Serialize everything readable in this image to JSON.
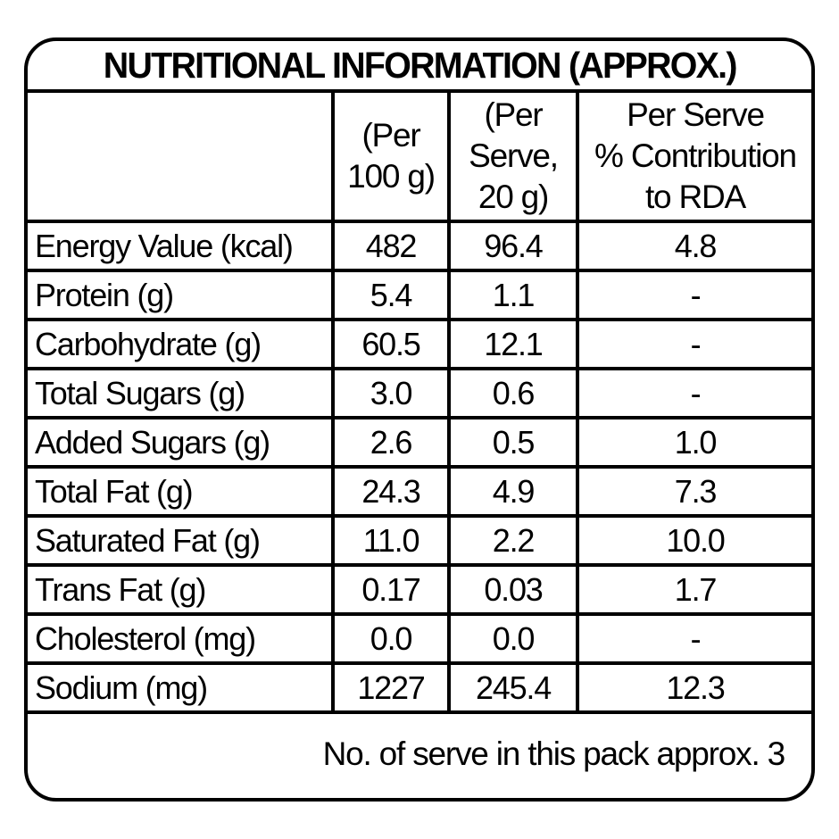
{
  "page": {
    "background_color": "#ffffff",
    "border_color": "#000000",
    "text_color": "#000000"
  },
  "label": {
    "title": "NUTRITIONAL INFORMATION (APPROX.)",
    "columns": {
      "nutrient": "",
      "per_100g": "(Per\n100 g)",
      "per_serve": "(Per\nServe,\n20 g)",
      "rda": "Per Serve\n% Contribution\nto RDA"
    },
    "rows": [
      {
        "name": "Energy Value (kcal)",
        "per_100g": "482",
        "per_serve": "96.4",
        "rda": "4.8"
      },
      {
        "name": "Protein (g)",
        "per_100g": "5.4",
        "per_serve": "1.1",
        "rda": "-"
      },
      {
        "name": "Carbohydrate (g)",
        "per_100g": "60.5",
        "per_serve": "12.1",
        "rda": "-"
      },
      {
        "name": "Total Sugars (g)",
        "per_100g": "3.0",
        "per_serve": "0.6",
        "rda": "-"
      },
      {
        "name": "Added Sugars (g)",
        "per_100g": "2.6",
        "per_serve": "0.5",
        "rda": "1.0"
      },
      {
        "name": "Total Fat (g)",
        "per_100g": "24.3",
        "per_serve": "4.9",
        "rda": "7.3"
      },
      {
        "name": "Saturated Fat (g)",
        "per_100g": "11.0",
        "per_serve": "2.2",
        "rda": "10.0"
      },
      {
        "name": "Trans Fat (g)",
        "per_100g": "0.17",
        "per_serve": "0.03",
        "rda": "1.7"
      },
      {
        "name": "Cholesterol (mg)",
        "per_100g": "0.0",
        "per_serve": "0.0",
        "rda": "-"
      },
      {
        "name": "Sodium (mg)",
        "per_100g": "1227",
        "per_serve": "245.4",
        "rda": "12.3"
      }
    ],
    "footer_note": "No. of serve in this pack approx. 3"
  }
}
